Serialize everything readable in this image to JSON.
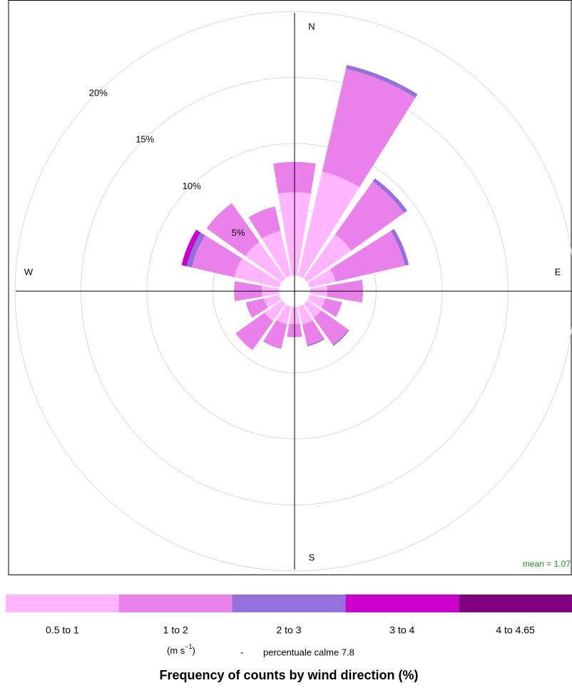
{
  "chart_data": {
    "type": "windrose",
    "title": "Frequency of counts by wind direction (%)",
    "directions": [
      0,
      22.5,
      45,
      67.5,
      90,
      112.5,
      135,
      157.5,
      180,
      202.5,
      225,
      247.5,
      270,
      292.5,
      315,
      337.5
    ],
    "compass_labels": [
      "N",
      "E",
      "S",
      "W"
    ],
    "series": [
      {
        "name": "0.5 to 1",
        "color": "#ffb6ff",
        "values": [
          6.3,
          8.1,
          4.1,
          2.0,
          1.3,
          1.2,
          1.3,
          1.4,
          1.3,
          1.4,
          1.6,
          1.2,
          1.3,
          3.5,
          3.4,
          3.5
        ]
      },
      {
        "name": "1 to 2",
        "color": "#ea80ea",
        "values": [
          2.3,
          8.0,
          4.9,
          5.4,
          2.7,
          1.3,
          2.5,
          1.6,
          1.0,
          1.9,
          2.7,
          1.4,
          2.1,
          3.3,
          3.6,
          1.9
        ]
      },
      {
        "name": "2 to 3",
        "color": "#9370db",
        "values": [
          0,
          0.3,
          0.3,
          0.3,
          0,
          0,
          0.1,
          0.1,
          0,
          0,
          0,
          0,
          0,
          0.4,
          0,
          0
        ]
      },
      {
        "name": "3 to 4",
        "color": "#cc00cc",
        "values": [
          0,
          0,
          0,
          0,
          0,
          0,
          0,
          0,
          0,
          0,
          0,
          0,
          0,
          0.4,
          0,
          0
        ]
      },
      {
        "name": "4 to 4.65",
        "color": "#800080",
        "values": [
          0,
          0,
          0,
          0,
          0,
          0,
          0,
          0,
          0,
          0,
          0,
          0,
          0,
          0,
          0,
          0
        ]
      }
    ],
    "rlim": [
      0,
      20
    ],
    "rticks": [
      {
        "value": 5,
        "label": "5%"
      },
      {
        "value": 10,
        "label": "10%"
      },
      {
        "value": 15,
        "label": "15%"
      },
      {
        "value": 20,
        "label": "20%"
      }
    ],
    "mean_label": "mean = 1.07",
    "unit_parts": [
      "(m s",
      "−1",
      ")"
    ],
    "separator": "-",
    "calm_label": "percentuale calme 7.8"
  }
}
